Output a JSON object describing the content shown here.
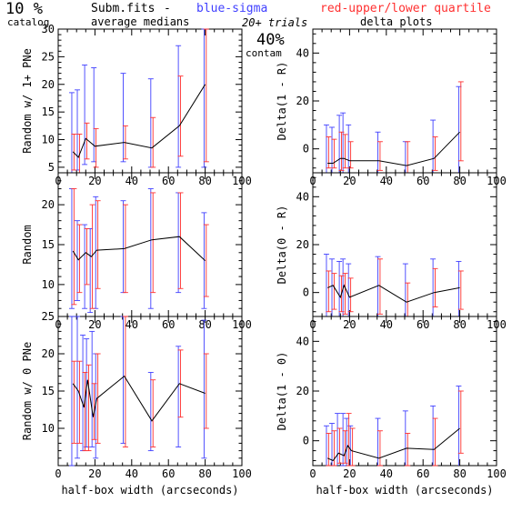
{
  "header": {
    "fraction": "10 %",
    "catalog": "catalog",
    "file": "Subm.fits",
    "dash": "-",
    "medians": "average medians",
    "blue_label": "blue-sigma",
    "red_label": "red-upper/lower quartile",
    "trials": "20+ trials",
    "delta": "delta plots",
    "contam_pct": "40%",
    "contam": "contam"
  },
  "colors": {
    "median": "#000000",
    "sigma": "#4040ff",
    "quartile": "#ff3030"
  },
  "chart_data": [
    {
      "type": "line",
      "panel": "left-top",
      "ylabel": "Random w/ 1+ PNe",
      "xlim": [
        0,
        100
      ],
      "ylim": [
        4,
        30
      ],
      "xticks": [
        0,
        20,
        40,
        60,
        80,
        100
      ],
      "yticks": [
        5,
        10,
        15,
        20,
        25,
        30
      ],
      "x": [
        8,
        11,
        15,
        20,
        36,
        51,
        66,
        80
      ],
      "median": [
        7.8,
        6.8,
        10.2,
        8.8,
        9.5,
        8.5,
        12.5,
        20
      ],
      "sigma": [
        [
          3.2,
          18.5
        ],
        [
          4.5,
          19
        ],
        [
          5.5,
          23.5
        ],
        [
          6,
          23
        ],
        [
          6,
          22
        ],
        [
          5,
          21
        ],
        [
          5,
          27
        ],
        [
          5,
          30
        ]
      ],
      "quartile": [
        [
          4.5,
          11
        ],
        [
          4,
          11
        ],
        [
          6.5,
          13
        ],
        [
          5,
          12
        ],
        [
          6.5,
          12.5
        ],
        [
          5,
          14
        ],
        [
          7,
          21.5
        ],
        [
          6,
          30
        ]
      ]
    },
    {
      "type": "line",
      "panel": "right-top",
      "ylabel": "Delta(1 - R)",
      "xlim": [
        0,
        100
      ],
      "ylim": [
        -10,
        50
      ],
      "xticks": [
        0,
        20,
        40,
        60,
        80,
        100
      ],
      "yticks": [
        0,
        20,
        40
      ],
      "x": [
        8,
        11,
        15,
        17,
        20,
        36,
        51,
        66,
        80
      ],
      "median": [
        -6,
        -6,
        -4,
        -4,
        -5,
        -5,
        -7,
        -4,
        7
      ],
      "sigma": [
        [
          -12,
          10
        ],
        [
          -11,
          9
        ],
        [
          -12,
          14
        ],
        [
          -12,
          15
        ],
        [
          -12,
          10
        ],
        [
          -11,
          7
        ],
        [
          -11,
          3
        ],
        [
          -11,
          12
        ],
        [
          -10,
          26
        ]
      ],
      "quartile": [
        [
          -8,
          5
        ],
        [
          -8,
          4
        ],
        [
          -9,
          7
        ],
        [
          -8,
          6
        ],
        [
          -8,
          3
        ],
        [
          -9,
          3
        ],
        [
          -10,
          3
        ],
        [
          -9,
          5
        ],
        [
          -5,
          28
        ]
      ]
    },
    {
      "type": "line",
      "panel": "left-middle",
      "ylabel": "Random",
      "xlim": [
        0,
        100
      ],
      "ylim": [
        6,
        24
      ],
      "xticks": [
        0,
        20,
        40,
        60,
        80,
        100
      ],
      "yticks": [
        10,
        15,
        20
      ],
      "x": [
        8,
        11,
        15,
        18,
        21,
        36,
        51,
        66,
        80
      ],
      "median": [
        14.2,
        13.1,
        14,
        13.5,
        14.3,
        14.5,
        15.6,
        16,
        13
      ],
      "sigma": [
        [
          7,
          22
        ],
        [
          8,
          18
        ],
        [
          7,
          17.5
        ],
        [
          6.5,
          17
        ],
        [
          7,
          21
        ],
        [
          9,
          20.5
        ],
        [
          7,
          22
        ],
        [
          9,
          21.5
        ],
        [
          7,
          19
        ]
      ],
      "quartile": [
        [
          7.5,
          22
        ],
        [
          9,
          17.5
        ],
        [
          10,
          17
        ],
        [
          7,
          20
        ],
        [
          9.5,
          20.5
        ],
        [
          9,
          20
        ],
        [
          9,
          21.5
        ],
        [
          9.5,
          21.5
        ],
        [
          8.5,
          17.5
        ]
      ]
    },
    {
      "type": "line",
      "panel": "right-middle",
      "ylabel": "Delta(0 - R)",
      "xlim": [
        0,
        100
      ],
      "ylim": [
        -10,
        50
      ],
      "xticks": [
        0,
        20,
        40,
        60,
        80,
        100
      ],
      "yticks": [
        0,
        20,
        40
      ],
      "x": [
        8,
        11,
        15,
        17,
        20,
        36,
        51,
        66,
        80
      ],
      "median": [
        2,
        3,
        -2,
        3,
        -2,
        3,
        -4,
        0,
        2
      ],
      "sigma": [
        [
          -12,
          16
        ],
        [
          -11,
          14
        ],
        [
          -10,
          13
        ],
        [
          -11,
          14
        ],
        [
          -11,
          12
        ],
        [
          -11,
          15
        ],
        [
          -11,
          12
        ],
        [
          -10,
          14
        ],
        [
          -10,
          13
        ]
      ],
      "quartile": [
        [
          -8,
          9
        ],
        [
          -7,
          8
        ],
        [
          -8,
          7
        ],
        [
          -9,
          8
        ],
        [
          -8,
          6
        ],
        [
          -9,
          14
        ],
        [
          -11,
          4
        ],
        [
          -6,
          10
        ],
        [
          -7,
          9
        ]
      ]
    },
    {
      "type": "line",
      "panel": "left-bottom",
      "ylabel": "Random w/ 0 PNe",
      "xlabel": "half-box width (arcseconds)",
      "xlim": [
        0,
        100
      ],
      "ylim": [
        5,
        25
      ],
      "xticks": [
        0,
        20,
        40,
        60,
        80,
        100
      ],
      "yticks": [
        10,
        15,
        20,
        25
      ],
      "x": [
        8,
        11,
        14,
        16,
        19,
        21,
        36,
        51,
        66,
        80
      ],
      "median": [
        16,
        15,
        12.8,
        16.5,
        11.5,
        14,
        17,
        11,
        16,
        14.7
      ],
      "sigma": [
        [
          5,
          25
        ],
        [
          6,
          25
        ],
        [
          7,
          22.5
        ],
        [
          7.5,
          22
        ],
        [
          7.5,
          23
        ],
        [
          6,
          20
        ],
        [
          8,
          25
        ],
        [
          7,
          17.5
        ],
        [
          7.5,
          21
        ],
        [
          6,
          24.5
        ]
      ],
      "quartile": [
        [
          8,
          19
        ],
        [
          8,
          19
        ],
        [
          7,
          17.5
        ],
        [
          7,
          18.5
        ],
        [
          8.5,
          16
        ],
        [
          8,
          20
        ],
        [
          7.5,
          25
        ],
        [
          7.5,
          16.5
        ],
        [
          11.5,
          20.5
        ],
        [
          10,
          20
        ]
      ]
    },
    {
      "type": "line",
      "panel": "right-bottom",
      "ylabel": "Delta(1 - 0)",
      "xlabel": "half-box width (arcseconds)",
      "xlim": [
        0,
        100
      ],
      "ylim": [
        -10,
        50
      ],
      "xticks": [
        0,
        20,
        40,
        60,
        80,
        100
      ],
      "yticks": [
        0,
        20,
        40
      ],
      "x": [
        8,
        11,
        14,
        17,
        19,
        21,
        36,
        51,
        66,
        80
      ],
      "median": [
        -7,
        -8,
        -5,
        -6,
        -2,
        -4,
        -7,
        -3,
        -3.5,
        5
      ],
      "sigma": [
        [
          -12,
          6
        ],
        [
          -11,
          7
        ],
        [
          -11,
          11
        ],
        [
          -10,
          11
        ],
        [
          -12,
          9
        ],
        [
          -12,
          6
        ],
        [
          -11,
          9
        ],
        [
          -11,
          12
        ],
        [
          -11,
          14
        ],
        [
          -11,
          22
        ]
      ],
      "quartile": [
        [
          -10,
          3
        ],
        [
          -10,
          4
        ],
        [
          -9,
          5
        ],
        [
          -9,
          4
        ],
        [
          -10,
          11
        ],
        [
          -10,
          5
        ],
        [
          -10,
          4
        ],
        [
          -10,
          3
        ],
        [
          -10,
          9
        ],
        [
          -5,
          20
        ]
      ]
    }
  ]
}
